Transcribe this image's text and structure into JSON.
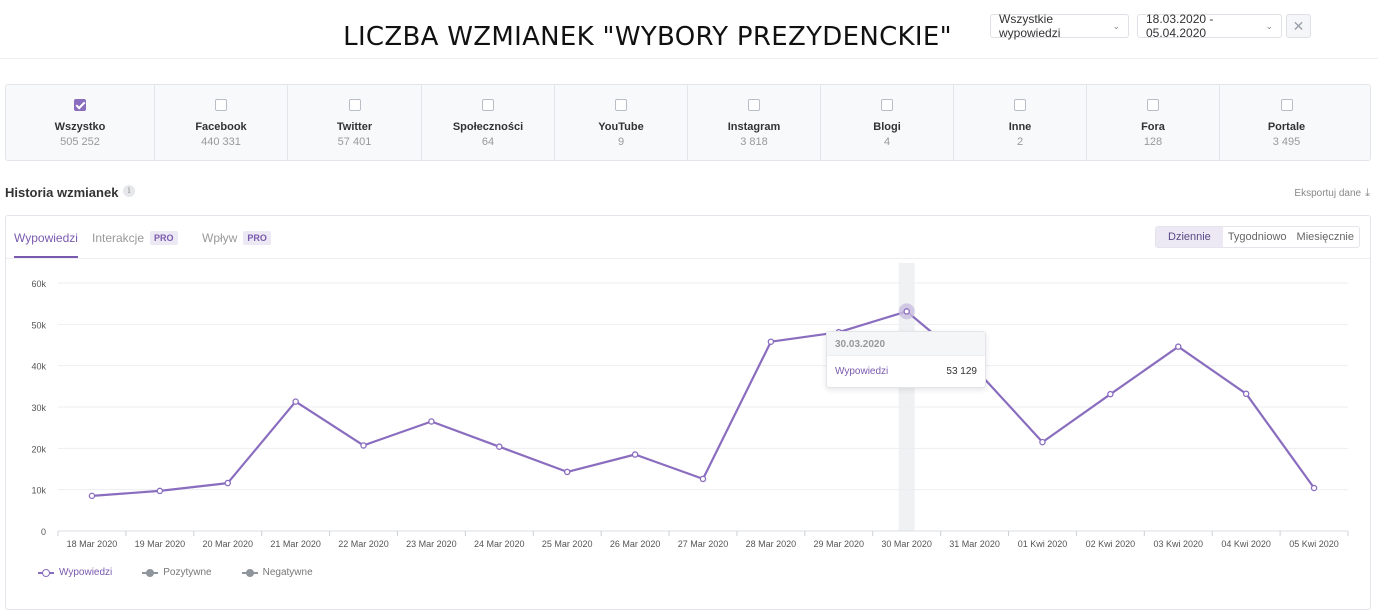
{
  "header": {
    "title": "LICZBA WZMIANEK \"WYBORY PREZYDENCKIE\"",
    "filter_label": "Wszystkie wypowiedzi",
    "date_range": "18.03.2020 - 05.04.2020"
  },
  "sources": [
    {
      "name": "Wszystko",
      "count": "505 252",
      "checked": true
    },
    {
      "name": "Facebook",
      "count": "440 331",
      "checked": false
    },
    {
      "name": "Twitter",
      "count": "57 401",
      "checked": false
    },
    {
      "name": "Społeczności",
      "count": "64",
      "checked": false
    },
    {
      "name": "YouTube",
      "count": "9",
      "checked": false
    },
    {
      "name": "Instagram",
      "count": "3 818",
      "checked": false
    },
    {
      "name": "Blogi",
      "count": "4",
      "checked": false
    },
    {
      "name": "Inne",
      "count": "2",
      "checked": false
    },
    {
      "name": "Fora",
      "count": "128",
      "checked": false
    },
    {
      "name": "Portale",
      "count": "3 495",
      "checked": false
    }
  ],
  "section": {
    "title": "Historia wzmianek",
    "info_icon": "i",
    "export_label": "Eksportuj dane"
  },
  "tabs": [
    {
      "label": "Wypowiedzi",
      "active": true,
      "pro": false
    },
    {
      "label": "Interakcje",
      "active": false,
      "pro": true
    },
    {
      "label": "Wpływ",
      "active": false,
      "pro": true
    }
  ],
  "pro_badge": "PRO",
  "period": {
    "daily": "Dziennie",
    "weekly": "Tygodniowo",
    "monthly": "Miesięcznie",
    "active": "daily"
  },
  "tooltip": {
    "date": "30.03.2020",
    "label": "Wypowiedzi",
    "value": "53 129"
  },
  "legend": [
    "Wypowiedzi",
    "Pozytywne",
    "Negatywne"
  ],
  "colors": {
    "accent": "#7a5aaf",
    "line": "#8a6dbf",
    "legend_gray": "#8e959c"
  },
  "chart_data": {
    "type": "line",
    "categories": [
      "18 Mar 2020",
      "19 Mar 2020",
      "20 Mar 2020",
      "21 Mar 2020",
      "22 Mar 2020",
      "23 Mar 2020",
      "24 Mar 2020",
      "25 Mar 2020",
      "26 Mar 2020",
      "27 Mar 2020",
      "28 Mar 2020",
      "29 Mar 2020",
      "30 Mar 2020",
      "31 Mar 2020",
      "01 Kwi 2020",
      "02 Kwi 2020",
      "03 Kwi 2020",
      "04 Kwi 2020",
      "05 Kwi 2020"
    ],
    "series": [
      {
        "name": "Wypowiedzi",
        "values": [
          8500,
          9700,
          11600,
          31300,
          20700,
          26500,
          20400,
          14300,
          18500,
          12600,
          45800,
          48100,
          53129,
          39400,
          21500,
          33100,
          44600,
          33200,
          10400
        ]
      }
    ],
    "y_ticks": [
      "0",
      "10k",
      "20k",
      "30k",
      "40k",
      "50k",
      "60k"
    ],
    "ylim": [
      0,
      60000
    ],
    "highlight_index": 12,
    "grid": true,
    "legend_position": "bottom-left"
  }
}
